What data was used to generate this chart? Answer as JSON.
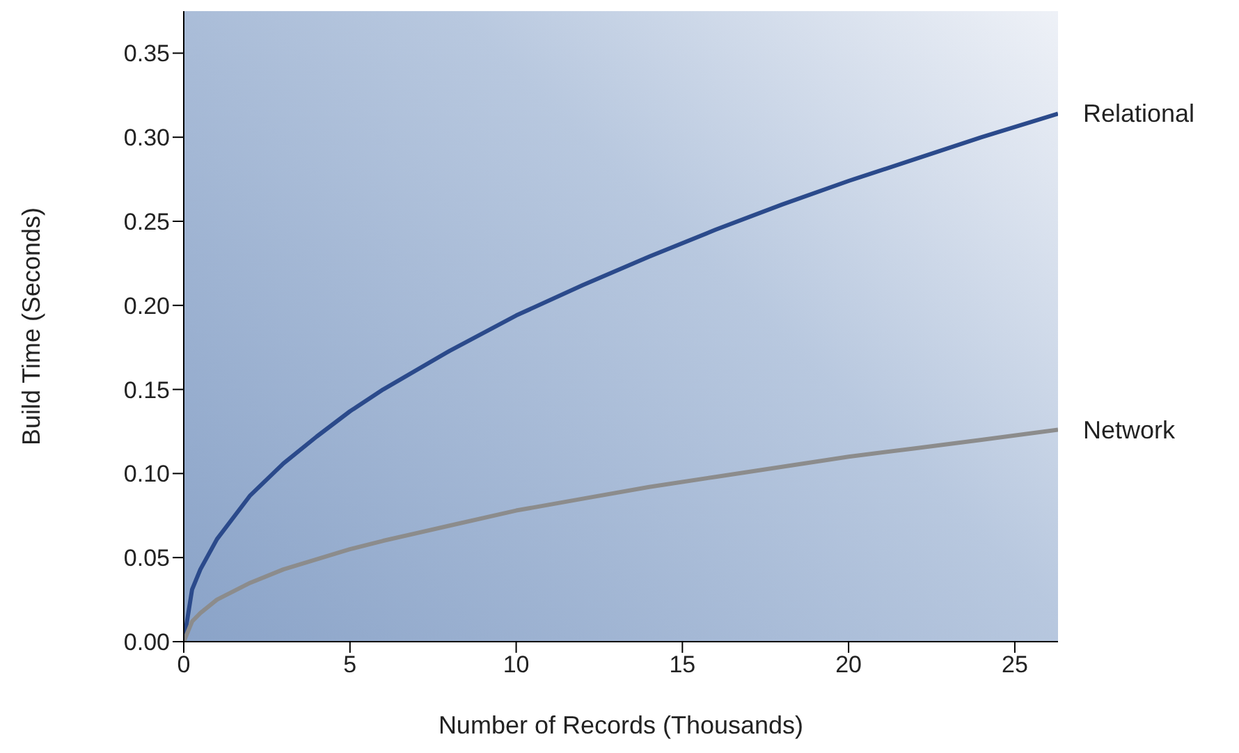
{
  "chart_data": {
    "type": "line",
    "xlabel": "Number of Records (Thousands)",
    "ylabel": "Build Time (Seconds)",
    "x": [
      0,
      0.25,
      0.5,
      1,
      2,
      3,
      4,
      5,
      6,
      8,
      10,
      12,
      14,
      16,
      18,
      20,
      22,
      24,
      26.3
    ],
    "series": [
      {
        "name": "Relational",
        "color": "#2b4a8b",
        "values": [
          0,
          0.031,
          0.043,
          0.061,
          0.087,
          0.106,
          0.122,
          0.137,
          0.15,
          0.173,
          0.194,
          0.212,
          0.229,
          0.245,
          0.26,
          0.274,
          0.287,
          0.3,
          0.314
        ]
      },
      {
        "name": "Network",
        "color": "#8c8c8c",
        "values": [
          0,
          0.012,
          0.017,
          0.025,
          0.035,
          0.043,
          0.049,
          0.055,
          0.06,
          0.069,
          0.078,
          0.085,
          0.092,
          0.098,
          0.104,
          0.11,
          0.115,
          0.12,
          0.126
        ]
      }
    ],
    "xlim": [
      0,
      26.3
    ],
    "xticks": [
      0,
      5,
      10,
      15,
      20,
      25
    ],
    "ylim": [
      0,
      0.375
    ],
    "yticks": [
      {
        "value": 0,
        "label": "0.00"
      },
      {
        "value": 0.05,
        "label": "0.05"
      },
      {
        "value": 0.1,
        "label": "0.10"
      },
      {
        "value": 0.15,
        "label": "0.15"
      },
      {
        "value": 0.2,
        "label": "0.20"
      },
      {
        "value": 0.25,
        "label": "0.25"
      },
      {
        "value": 0.3,
        "label": "0.30"
      },
      {
        "value": 0.35,
        "label": "0.35"
      }
    ],
    "grid": false,
    "marker": "none",
    "line_style": "solid"
  }
}
